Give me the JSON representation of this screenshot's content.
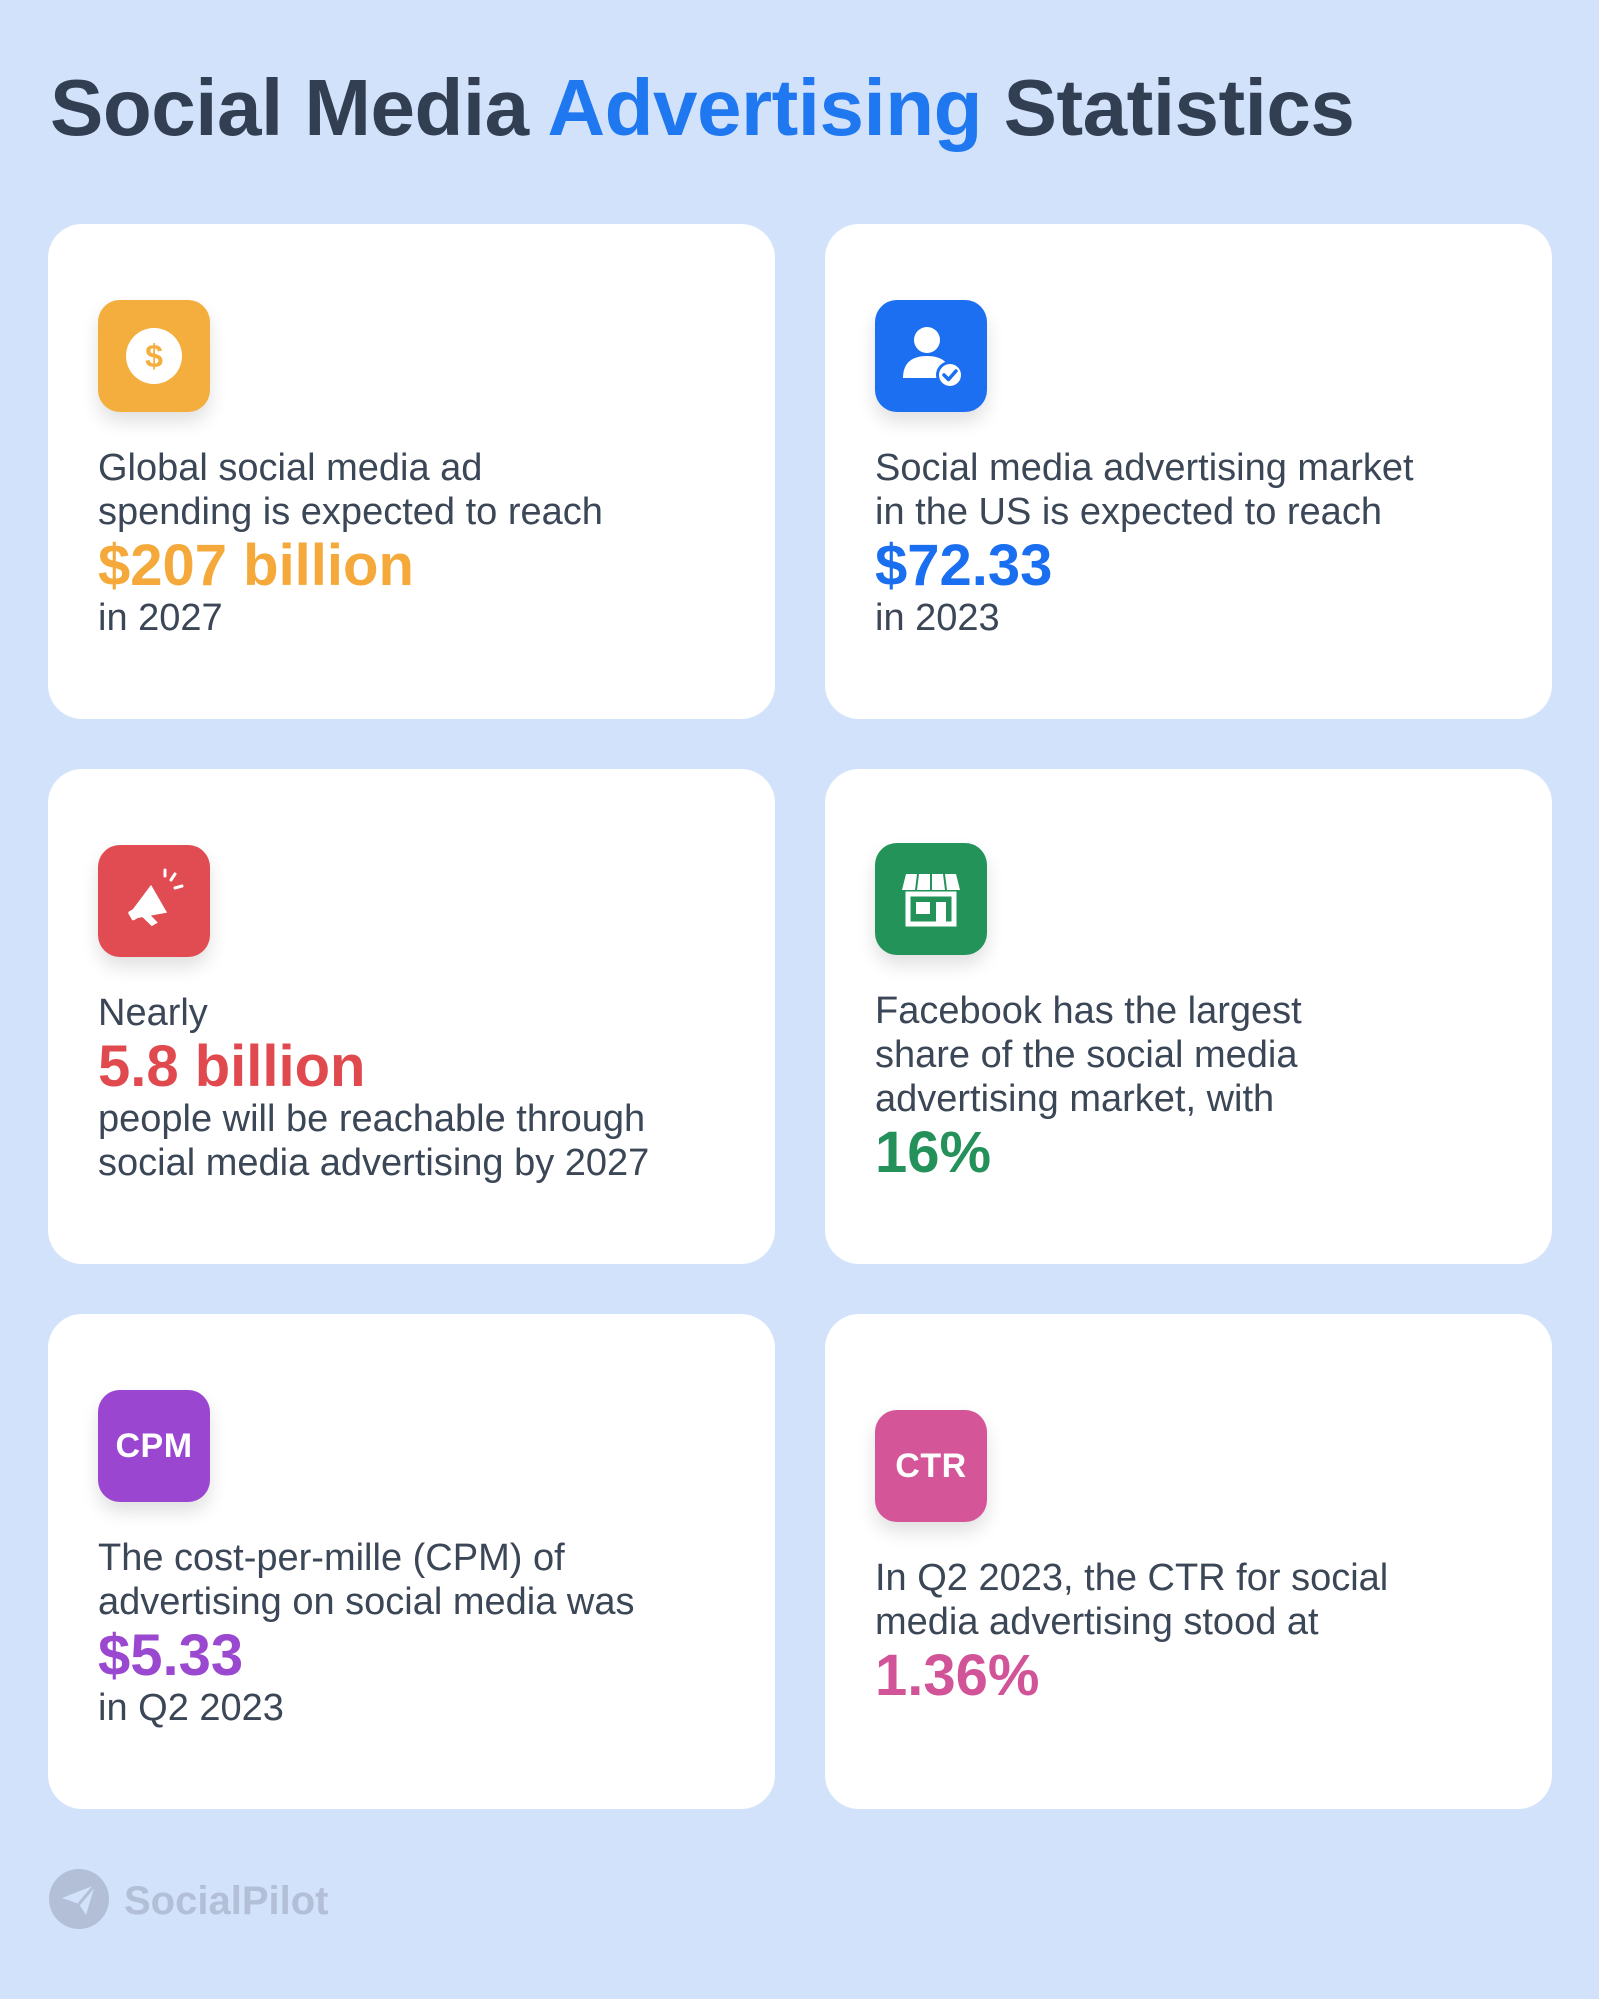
{
  "title": {
    "part1": "Social Media ",
    "accent": "Advertising",
    "part2": " Statistics"
  },
  "cards": [
    {
      "icon": "dollar-coin-icon",
      "color": "#f4ae3e",
      "pre": [
        "Global social media ad",
        "spending is expected to reach"
      ],
      "stat": "$207 billion",
      "post": [
        "in 2027"
      ]
    },
    {
      "icon": "verified-user-icon",
      "color": "#1d6ff2",
      "pre": [
        "Social media advertising market",
        "in the US is expected to reach"
      ],
      "stat": "$72.33",
      "post": [
        "in 2023"
      ]
    },
    {
      "icon": "megaphone-icon",
      "color": "#e04c52",
      "pre": [
        "Nearly"
      ],
      "stat": "5.8 billion",
      "post": [
        "people will be reachable through",
        "social media advertising by 2027"
      ]
    },
    {
      "icon": "storefront-icon",
      "color": "#24935a",
      "pre": [
        "Facebook has the largest",
        "share of the social media",
        "advertising market, with"
      ],
      "stat": "16%",
      "post": []
    },
    {
      "icon": "cpm-icon",
      "icon_label": "CPM",
      "color": "#9b46d1",
      "pre": [
        "The cost-per-mille (CPM) of",
        "advertising on social media was"
      ],
      "stat": "$5.33",
      "post": [
        "in Q2 2023"
      ]
    },
    {
      "icon": "ctr-icon",
      "icon_label": "CTR",
      "color": "#d45598",
      "pre": [
        "In Q2 2023, the CTR for social",
        "media advertising stood at"
      ],
      "stat": "1.36%",
      "post": []
    }
  ],
  "brand": {
    "name": "SocialPilot",
    "icon": "paper-plane-logo-icon"
  }
}
